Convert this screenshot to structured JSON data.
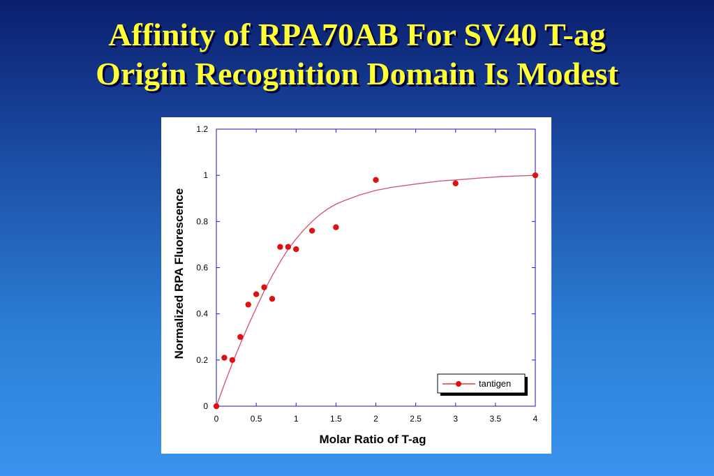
{
  "slide": {
    "title_line1": "Affinity of RPA70AB For SV40 T-ag",
    "title_line2": "Origin Recognition Domain Is Modest"
  },
  "colors": {
    "title": "#ffff33",
    "axis": "#1a1ab4",
    "series": "#e01010",
    "fit_curve": "#d4506e"
  },
  "chart_data": {
    "type": "scatter",
    "title": "",
    "xlabel": "Molar Ratio of T-ag",
    "ylabel": "Normalized RPA Fluorescence",
    "xlim": [
      0,
      4
    ],
    "ylim": [
      0,
      1.2
    ],
    "x_ticks": [
      "0",
      "0.5",
      "1",
      "1.5",
      "2",
      "2.5",
      "3",
      "3.5",
      "4"
    ],
    "y_ticks": [
      "0",
      "0.2",
      "0.4",
      "0.6",
      "0.8",
      "1",
      "1.2"
    ],
    "legend_position": "bottom-right",
    "grid": false,
    "series": [
      {
        "name": "tantigen",
        "x": [
          0,
          0.1,
          0.2,
          0.3,
          0.4,
          0.5,
          0.6,
          0.7,
          0.8,
          0.9,
          1.0,
          1.2,
          1.5,
          2.0,
          3.0,
          4.0
        ],
        "y": [
          0,
          0.21,
          0.2,
          0.3,
          0.44,
          0.485,
          0.515,
          0.465,
          0.69,
          0.69,
          0.68,
          0.76,
          0.775,
          0.98,
          0.965,
          1.0
        ]
      }
    ],
    "fit_curve": {
      "x": [
        0,
        0.1,
        0.2,
        0.3,
        0.4,
        0.5,
        0.6,
        0.7,
        0.8,
        0.9,
        1.0,
        1.1,
        1.2,
        1.3,
        1.4,
        1.5,
        1.6,
        1.8,
        2.0,
        2.2,
        2.5,
        2.8,
        3.0,
        3.3,
        3.6,
        4.0
      ],
      "y": [
        0,
        0.095,
        0.185,
        0.27,
        0.35,
        0.425,
        0.5,
        0.565,
        0.625,
        0.68,
        0.725,
        0.765,
        0.8,
        0.83,
        0.855,
        0.875,
        0.89,
        0.915,
        0.935,
        0.948,
        0.962,
        0.975,
        0.98,
        0.988,
        0.995,
        1.0
      ]
    }
  }
}
